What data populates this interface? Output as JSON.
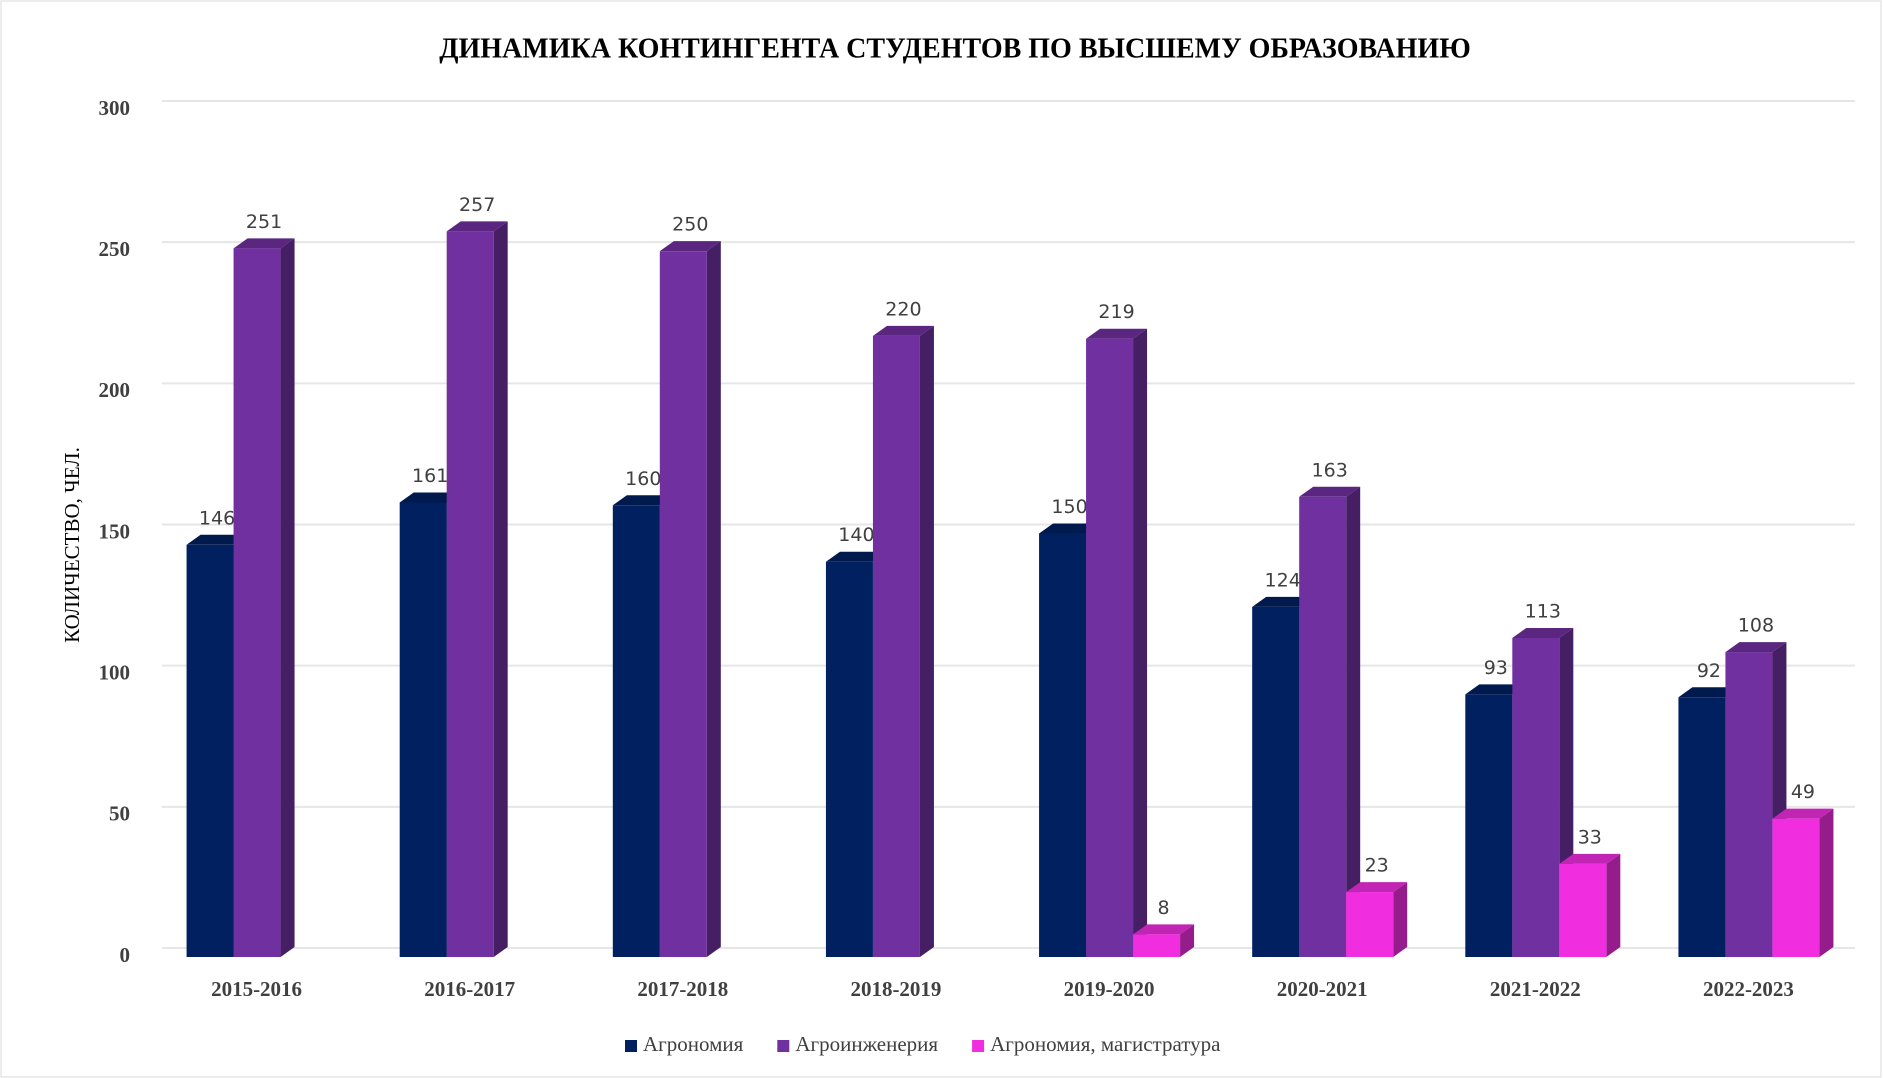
{
  "chart_data": {
    "type": "bar3d",
    "title": "ДИНАМИКА КОНТИНГЕНТА СТУДЕНТОВ  ПО ВЫСШЕМУ ОБРАЗОВАНИЮ",
    "y_label": "КОЛИЧЕСТВО, ЧЕЛ.",
    "categories": [
      "2015-2016",
      "2016-2017",
      "2017-2018",
      "2018-2019",
      "2019-2020",
      "2020-2021",
      "2021-2022",
      "2022-2023"
    ],
    "series": [
      {
        "name": "Агрономия",
        "color": "#002060",
        "values": [
          146,
          161,
          160,
          140,
          150,
          124,
          93,
          92
        ]
      },
      {
        "name": "Агроинженерия",
        "color": "#7030a0",
        "values": [
          251,
          257,
          250,
          220,
          219,
          163,
          113,
          108
        ]
      },
      {
        "name": "Агрономия, магистратура",
        "color": "#f02ee0",
        "values": [
          null,
          null,
          null,
          null,
          8,
          23,
          33,
          49
        ]
      }
    ],
    "ylim": [
      0,
      300
    ],
    "yticks": [
      0,
      50,
      100,
      150,
      200,
      250,
      300
    ],
    "grid": true,
    "legend": "bottom"
  }
}
